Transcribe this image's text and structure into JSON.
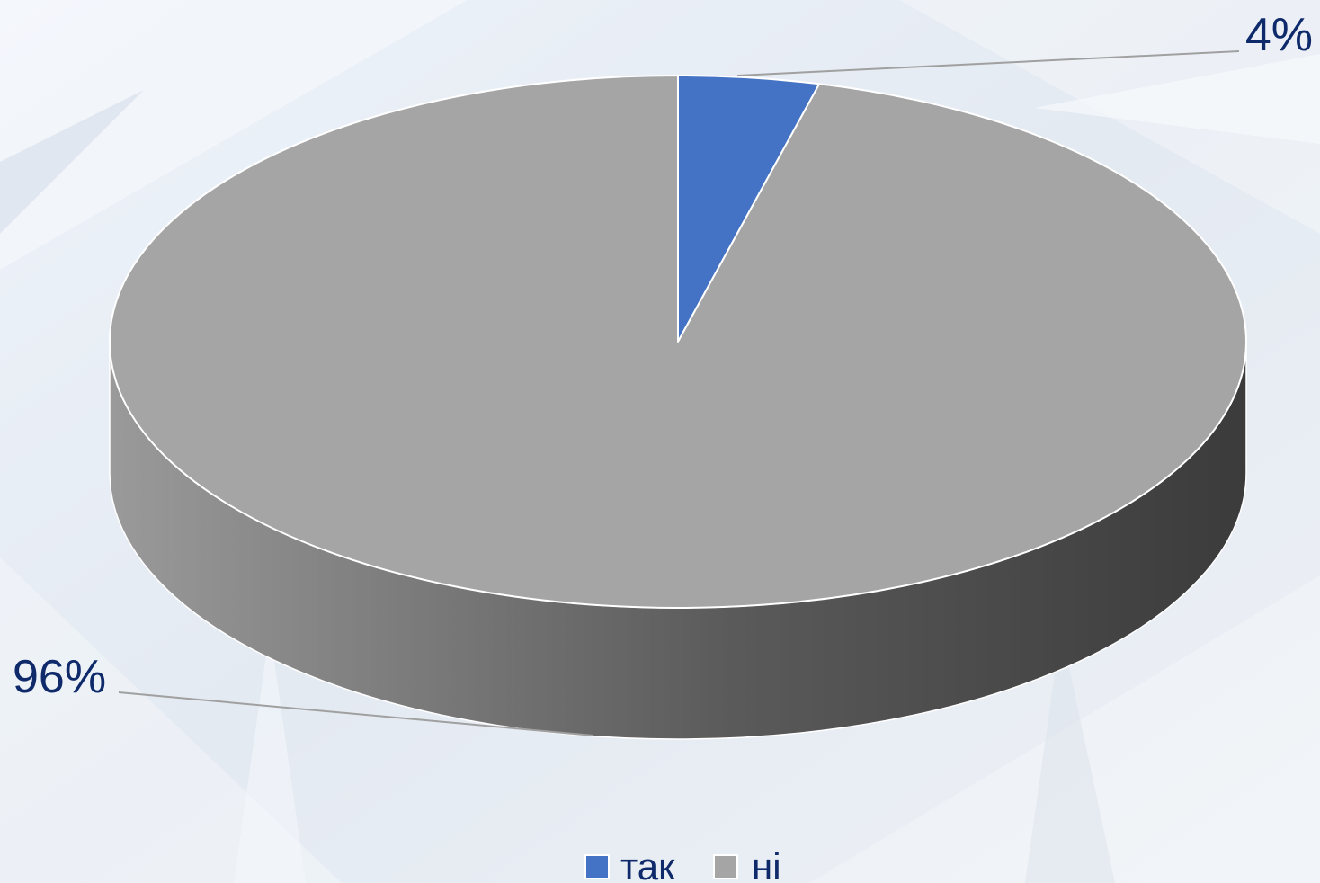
{
  "chart_data": {
    "type": "pie",
    "style": "3d",
    "title": "",
    "categories": [
      "так",
      "ні"
    ],
    "values": [
      4,
      96
    ],
    "unit": "%",
    "data_labels": [
      "4%",
      "96%"
    ],
    "colors": [
      "#4472c4",
      "#a5a5a5"
    ],
    "side_colors": [
      "#2f528f",
      "#444444"
    ],
    "start_angle_deg": -90,
    "legend": {
      "placement": "bottom",
      "entries": [
        "так",
        "ні"
      ]
    }
  },
  "colors": {
    "label_text": "#0f2a6b",
    "leader_line": "#a0a0a0",
    "slice_border": "#ffffff",
    "background": "#e9eef5"
  }
}
